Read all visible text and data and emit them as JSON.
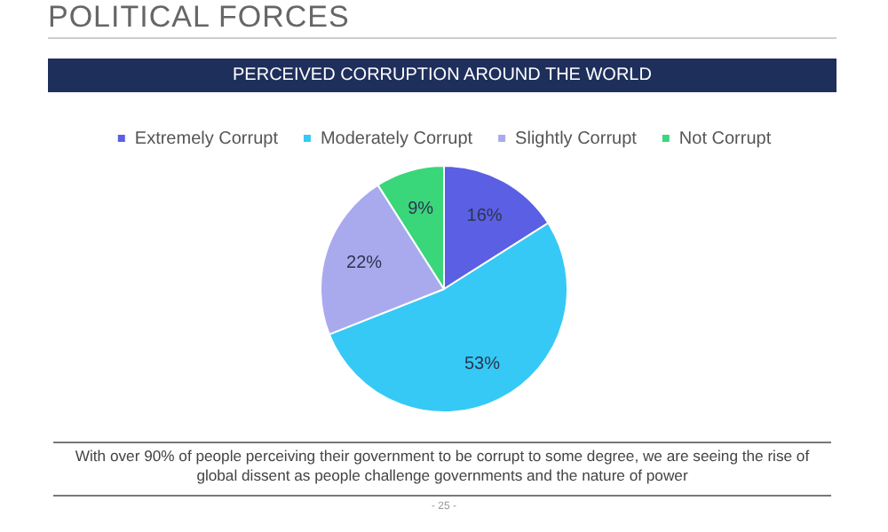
{
  "chart_data": {
    "type": "pie",
    "title": "POLITICAL FORCES",
    "subtitle": "PERCEIVED CORRUPTION AROUND THE WORLD",
    "categories": [
      "Extremely Corrupt",
      "Moderately Corrupt",
      "Slightly Corrupt",
      "Not Corrupt"
    ],
    "values": [
      16,
      53,
      22,
      9
    ],
    "value_labels": [
      "16%",
      "53%",
      "22%",
      "9%"
    ],
    "colors": [
      "#5b5fe3",
      "#36c9f5",
      "#a9aaee",
      "#3ad67a"
    ],
    "legend": "top",
    "annotations": [
      "With over 90% of people perceiving their government to be corrupt to some degree, we are seeing the rise of global dissent as people challenge governments and the nature of power",
      "- 25 -"
    ]
  }
}
